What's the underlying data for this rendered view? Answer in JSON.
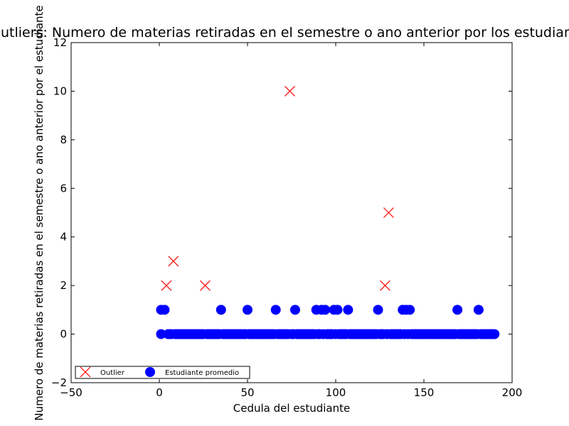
{
  "chart_data": {
    "type": "scatter",
    "title": "Outliers: Numero de materias retiradas en el semestre o ano anterior por los estudiantes",
    "xlabel": "Cedula del estudiante",
    "ylabel": "Numero de materias retiradas en el semestre o ano anterior por el estudiante",
    "xlim": [
      -50,
      200
    ],
    "ylim": [
      -2,
      12
    ],
    "xticks": [
      -50,
      0,
      50,
      100,
      150,
      200
    ],
    "yticks": [
      -2,
      0,
      2,
      4,
      6,
      8,
      10,
      12
    ],
    "grid": false,
    "legend": {
      "position": "lower-left",
      "entries": [
        "Outlier",
        "Estudiante promedio"
      ]
    },
    "series": [
      {
        "name": "Outlier",
        "marker": "x",
        "color": "#ff0000",
        "points": [
          [
            4,
            2
          ],
          [
            8,
            3
          ],
          [
            26,
            2
          ],
          [
            74,
            10
          ],
          [
            128,
            2
          ],
          [
            130,
            5
          ]
        ]
      },
      {
        "name": "Estudiante promedio",
        "marker": "circle",
        "color": "#0000ff",
        "points": [
          [
            1,
            1
          ],
          [
            3,
            1
          ],
          [
            35,
            1
          ],
          [
            50,
            1
          ],
          [
            66,
            1
          ],
          [
            77,
            1
          ],
          [
            89,
            1
          ],
          [
            92,
            1
          ],
          [
            94,
            1
          ],
          [
            99,
            1
          ],
          [
            101,
            1
          ],
          [
            107,
            1
          ],
          [
            124,
            1
          ],
          [
            138,
            1
          ],
          [
            140,
            1
          ],
          [
            142,
            1
          ],
          [
            169,
            1
          ],
          [
            181,
            1
          ],
          [
            1,
            0
          ],
          [
            5,
            0
          ],
          [
            6,
            0
          ],
          [
            7,
            0
          ],
          [
            9,
            0
          ],
          [
            10,
            0
          ],
          [
            11,
            0
          ],
          [
            12,
            0
          ],
          [
            13,
            0
          ],
          [
            14,
            0
          ],
          [
            15,
            0
          ],
          [
            16,
            0
          ],
          [
            17,
            0
          ],
          [
            18,
            0
          ],
          [
            19,
            0
          ],
          [
            20,
            0
          ],
          [
            21,
            0
          ],
          [
            22,
            0
          ],
          [
            23,
            0
          ],
          [
            24,
            0
          ],
          [
            25,
            0
          ],
          [
            27,
            0
          ],
          [
            28,
            0
          ],
          [
            29,
            0
          ],
          [
            30,
            0
          ],
          [
            31,
            0
          ],
          [
            32,
            0
          ],
          [
            33,
            0
          ],
          [
            34,
            0
          ],
          [
            36,
            0
          ],
          [
            37,
            0
          ],
          [
            38,
            0
          ],
          [
            39,
            0
          ],
          [
            40,
            0
          ],
          [
            41,
            0
          ],
          [
            42,
            0
          ],
          [
            43,
            0
          ],
          [
            44,
            0
          ],
          [
            45,
            0
          ],
          [
            46,
            0
          ],
          [
            47,
            0
          ],
          [
            48,
            0
          ],
          [
            49,
            0
          ],
          [
            51,
            0
          ],
          [
            52,
            0
          ],
          [
            53,
            0
          ],
          [
            54,
            0
          ],
          [
            55,
            0
          ],
          [
            56,
            0
          ],
          [
            57,
            0
          ],
          [
            58,
            0
          ],
          [
            59,
            0
          ],
          [
            60,
            0
          ],
          [
            61,
            0
          ],
          [
            62,
            0
          ],
          [
            63,
            0
          ],
          [
            64,
            0
          ],
          [
            65,
            0
          ],
          [
            67,
            0
          ],
          [
            68,
            0
          ],
          [
            69,
            0
          ],
          [
            70,
            0
          ],
          [
            71,
            0
          ],
          [
            72,
            0
          ],
          [
            73,
            0
          ],
          [
            75,
            0
          ],
          [
            76,
            0
          ],
          [
            78,
            0
          ],
          [
            79,
            0
          ],
          [
            80,
            0
          ],
          [
            81,
            0
          ],
          [
            82,
            0
          ],
          [
            83,
            0
          ],
          [
            84,
            0
          ],
          [
            85,
            0
          ],
          [
            86,
            0
          ],
          [
            87,
            0
          ],
          [
            88,
            0
          ],
          [
            90,
            0
          ],
          [
            91,
            0
          ],
          [
            93,
            0
          ],
          [
            95,
            0
          ],
          [
            96,
            0
          ],
          [
            97,
            0
          ],
          [
            98,
            0
          ],
          [
            100,
            0
          ],
          [
            102,
            0
          ],
          [
            103,
            0
          ],
          [
            104,
            0
          ],
          [
            105,
            0
          ],
          [
            106,
            0
          ],
          [
            108,
            0
          ],
          [
            109,
            0
          ],
          [
            110,
            0
          ],
          [
            111,
            0
          ],
          [
            112,
            0
          ],
          [
            113,
            0
          ],
          [
            114,
            0
          ],
          [
            115,
            0
          ],
          [
            116,
            0
          ],
          [
            117,
            0
          ],
          [
            118,
            0
          ],
          [
            119,
            0
          ],
          [
            120,
            0
          ],
          [
            121,
            0
          ],
          [
            122,
            0
          ],
          [
            123,
            0
          ],
          [
            125,
            0
          ],
          [
            126,
            0
          ],
          [
            127,
            0
          ],
          [
            129,
            0
          ],
          [
            131,
            0
          ],
          [
            132,
            0
          ],
          [
            133,
            0
          ],
          [
            134,
            0
          ],
          [
            135,
            0
          ],
          [
            136,
            0
          ],
          [
            137,
            0
          ],
          [
            139,
            0
          ],
          [
            141,
            0
          ],
          [
            143,
            0
          ],
          [
            144,
            0
          ],
          [
            145,
            0
          ],
          [
            146,
            0
          ],
          [
            147,
            0
          ],
          [
            148,
            0
          ],
          [
            149,
            0
          ],
          [
            150,
            0
          ],
          [
            151,
            0
          ],
          [
            152,
            0
          ],
          [
            153,
            0
          ],
          [
            154,
            0
          ],
          [
            155,
            0
          ],
          [
            156,
            0
          ],
          [
            157,
            0
          ],
          [
            158,
            0
          ],
          [
            159,
            0
          ],
          [
            160,
            0
          ],
          [
            161,
            0
          ],
          [
            162,
            0
          ],
          [
            163,
            0
          ],
          [
            164,
            0
          ],
          [
            165,
            0
          ],
          [
            166,
            0
          ],
          [
            167,
            0
          ],
          [
            168,
            0
          ],
          [
            170,
            0
          ],
          [
            171,
            0
          ],
          [
            172,
            0
          ],
          [
            173,
            0
          ],
          [
            174,
            0
          ],
          [
            175,
            0
          ],
          [
            176,
            0
          ],
          [
            177,
            0
          ],
          [
            178,
            0
          ],
          [
            179,
            0
          ],
          [
            180,
            0
          ],
          [
            182,
            0
          ],
          [
            183,
            0
          ],
          [
            184,
            0
          ],
          [
            185,
            0
          ],
          [
            186,
            0
          ],
          [
            187,
            0
          ],
          [
            188,
            0
          ],
          [
            189,
            0
          ],
          [
            190,
            0
          ]
        ]
      }
    ]
  }
}
